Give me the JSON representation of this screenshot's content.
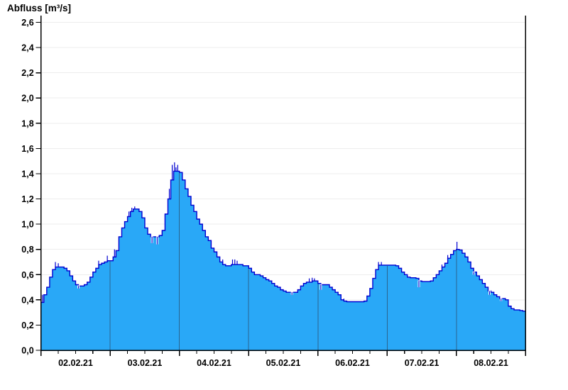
{
  "chart_data": {
    "type": "area",
    "title": "Abfluss [m³/s]",
    "series_name": "Abfluss",
    "unit": "m³/s",
    "x_labels": [
      "02.02.21",
      "03.02.21",
      "04.02.21",
      "05.02.21",
      "06.02.21",
      "07.02.21",
      "08.02.21"
    ],
    "x_span_hours": 168,
    "x_minor_tick_hours": 6,
    "x_major_tick_hours": 24,
    "y_tick_labels": [
      "0,0",
      "0,2",
      "0,4",
      "0,6",
      "0,8",
      "1,0",
      "1,2",
      "1,4",
      "1,6",
      "1,8",
      "2,0",
      "2,2",
      "2,4",
      "2,6"
    ],
    "ylim": [
      0,
      2.6
    ],
    "y_tick_step": 0.2,
    "grid": true,
    "legend": false,
    "values_per_hour": [
      0.38,
      0.44,
      0.5,
      0.58,
      0.64,
      0.66,
      0.66,
      0.66,
      0.65,
      0.63,
      0.59,
      0.55,
      0.52,
      0.51,
      0.51,
      0.52,
      0.54,
      0.58,
      0.62,
      0.65,
      0.68,
      0.69,
      0.7,
      0.71,
      0.71,
      0.74,
      0.79,
      0.9,
      0.97,
      1.02,
      1.06,
      1.1,
      1.12,
      1.12,
      1.1,
      1.05,
      0.97,
      0.92,
      0.9,
      0.9,
      0.9,
      0.91,
      0.95,
      1.08,
      1.2,
      1.35,
      1.42,
      1.42,
      1.41,
      1.35,
      1.28,
      1.22,
      1.15,
      1.1,
      1.04,
      1.0,
      0.95,
      0.9,
      0.87,
      0.81,
      0.78,
      0.74,
      0.7,
      0.68,
      0.67,
      0.67,
      0.68,
      0.68,
      0.68,
      0.68,
      0.67,
      0.67,
      0.65,
      0.62,
      0.6,
      0.6,
      0.59,
      0.575,
      0.56,
      0.55,
      0.53,
      0.51,
      0.5,
      0.48,
      0.47,
      0.46,
      0.46,
      0.46,
      0.46,
      0.48,
      0.51,
      0.53,
      0.54,
      0.54,
      0.55,
      0.55,
      0.53,
      0.52,
      0.52,
      0.52,
      0.5,
      0.48,
      0.46,
      0.44,
      0.4,
      0.39,
      0.385,
      0.385,
      0.385,
      0.385,
      0.385,
      0.385,
      0.39,
      0.43,
      0.49,
      0.57,
      0.64,
      0.675,
      0.675,
      0.675,
      0.675,
      0.675,
      0.675,
      0.67,
      0.65,
      0.62,
      0.6,
      0.58,
      0.575,
      0.575,
      0.57,
      0.55,
      0.545,
      0.545,
      0.545,
      0.55,
      0.575,
      0.6,
      0.63,
      0.66,
      0.69,
      0.73,
      0.76,
      0.79,
      0.8,
      0.795,
      0.77,
      0.74,
      0.7,
      0.65,
      0.62,
      0.59,
      0.56,
      0.53,
      0.5,
      0.47,
      0.46,
      0.44,
      0.425,
      0.41,
      0.41,
      0.4,
      0.35,
      0.33,
      0.32,
      0.32,
      0.315,
      0.31,
      0.31
    ],
    "noise_spikes": [
      [
        0.5,
        0.44
      ],
      [
        5,
        0.7
      ],
      [
        6,
        0.69
      ],
      [
        20,
        0.71
      ],
      [
        23,
        0.75
      ],
      [
        25.5,
        0.8
      ],
      [
        30.5,
        1.1
      ],
      [
        31.5,
        1.13
      ],
      [
        32.5,
        1.14
      ],
      [
        44.5,
        1.28
      ],
      [
        45.5,
        1.47
      ],
      [
        46.3,
        1.49
      ],
      [
        46.8,
        1.45
      ],
      [
        47.4,
        1.47
      ],
      [
        63,
        0.72
      ],
      [
        66.4,
        0.72
      ],
      [
        67.2,
        0.72
      ],
      [
        68,
        0.71
      ],
      [
        93,
        0.57
      ],
      [
        94,
        0.575
      ],
      [
        94.8,
        0.57
      ],
      [
        105,
        0.41
      ],
      [
        117,
        0.7
      ],
      [
        118,
        0.7
      ],
      [
        139,
        0.68
      ],
      [
        141,
        0.755
      ],
      [
        144.2,
        0.86
      ],
      [
        13,
        0.49
      ],
      [
        38.5,
        0.85
      ],
      [
        40.3,
        0.84
      ],
      [
        87,
        0.44
      ],
      [
        97,
        0.48
      ],
      [
        131,
        0.5
      ],
      [
        150,
        0.6
      ],
      [
        155.5,
        0.44
      ],
      [
        159.5,
        0.39
      ]
    ],
    "colors": {
      "fill": "#29a8f7",
      "line": "#0000d0",
      "grid": "#ededed",
      "axis": "#000000",
      "day_line": "#2b6590",
      "background": "#ffffff",
      "text": "#000000"
    }
  }
}
